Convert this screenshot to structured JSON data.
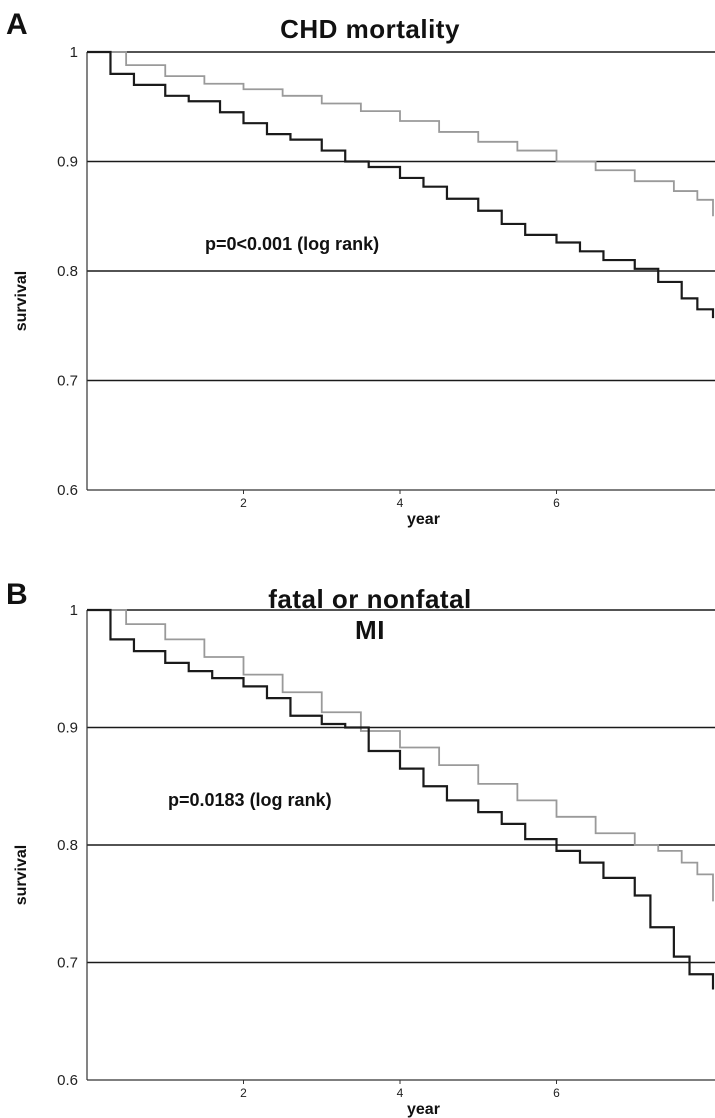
{
  "colors": {
    "series_dark": "#1a1a1a",
    "series_light": "#9a9a9a",
    "gridline": "#1a1a1a"
  },
  "chart_data": [
    {
      "panel": "A",
      "type": "line",
      "title": "CHD mortality",
      "xlabel": "year",
      "ylabel": "survival",
      "xlim": [
        0,
        8
      ],
      "ylim": [
        0.6,
        1.0
      ],
      "yticks": [
        "0.6",
        "0.7",
        "0.8",
        "0.9",
        "1"
      ],
      "xticks": [
        "2",
        "4",
        "6"
      ],
      "grid": true,
      "annotation": "p=0<0.001 (log rank)",
      "series": [
        {
          "color": "#9a9a9a",
          "x": [
            0,
            0.5,
            1,
            1.5,
            2,
            2.5,
            3,
            3.5,
            4,
            4.5,
            5,
            5.5,
            6,
            6.5,
            7,
            7.5,
            7.8,
            8
          ],
          "y": [
            1.0,
            0.988,
            0.978,
            0.971,
            0.966,
            0.96,
            0.953,
            0.946,
            0.937,
            0.927,
            0.918,
            0.91,
            0.9,
            0.892,
            0.882,
            0.873,
            0.865,
            0.85
          ]
        },
        {
          "color": "#1a1a1a",
          "x": [
            0,
            0.3,
            0.6,
            1,
            1.3,
            1.7,
            2,
            2.3,
            2.6,
            3,
            3.3,
            3.6,
            4,
            4.3,
            4.6,
            5,
            5.3,
            5.6,
            6,
            6.3,
            6.6,
            7,
            7.3,
            7.6,
            7.8,
            8
          ],
          "y": [
            1.0,
            0.98,
            0.97,
            0.96,
            0.955,
            0.945,
            0.935,
            0.925,
            0.92,
            0.91,
            0.9,
            0.895,
            0.885,
            0.877,
            0.866,
            0.855,
            0.843,
            0.833,
            0.826,
            0.818,
            0.81,
            0.802,
            0.79,
            0.775,
            0.765,
            0.757
          ]
        }
      ]
    },
    {
      "panel": "B",
      "type": "line",
      "title": "fatal or nonfatal MI",
      "xlabel": "year",
      "ylabel": "survival",
      "xlim": [
        0,
        8
      ],
      "ylim": [
        0.6,
        1.0
      ],
      "yticks": [
        "0.6",
        "0.7",
        "0.8",
        "0.9",
        "1"
      ],
      "xticks": [
        "2",
        "4",
        "6"
      ],
      "grid": true,
      "annotation": "p=0.0183 (log rank)",
      "series": [
        {
          "color": "#9a9a9a",
          "x": [
            0,
            0.5,
            1,
            1.5,
            2,
            2.5,
            3,
            3.5,
            4,
            4.5,
            5,
            5.5,
            6,
            6.5,
            7,
            7.3,
            7.6,
            7.8,
            8
          ],
          "y": [
            1.0,
            0.988,
            0.975,
            0.96,
            0.945,
            0.93,
            0.913,
            0.897,
            0.883,
            0.868,
            0.852,
            0.838,
            0.824,
            0.81,
            0.8,
            0.795,
            0.785,
            0.775,
            0.752
          ]
        },
        {
          "color": "#1a1a1a",
          "x": [
            0,
            0.3,
            0.6,
            1,
            1.3,
            1.6,
            2,
            2.3,
            2.6,
            3,
            3.3,
            3.6,
            4,
            4.3,
            4.6,
            5,
            5.3,
            5.6,
            6,
            6.3,
            6.6,
            7,
            7.2,
            7.5,
            7.7,
            8
          ],
          "y": [
            1.0,
            0.975,
            0.965,
            0.955,
            0.948,
            0.942,
            0.935,
            0.925,
            0.91,
            0.903,
            0.9,
            0.88,
            0.865,
            0.85,
            0.838,
            0.828,
            0.818,
            0.805,
            0.795,
            0.785,
            0.772,
            0.757,
            0.73,
            0.705,
            0.69,
            0.677
          ]
        }
      ]
    }
  ]
}
